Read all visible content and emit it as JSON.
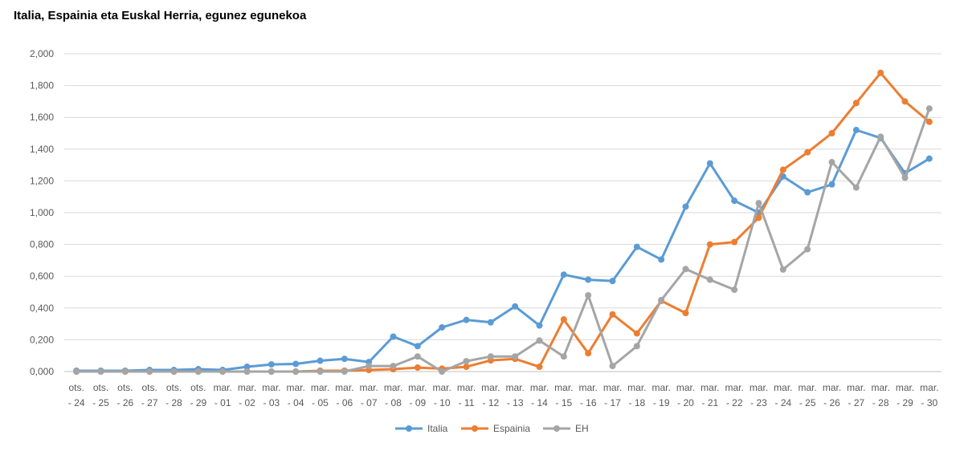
{
  "chart_data": {
    "type": "line",
    "title": "Italia, Espainia eta Euskal Herria, egunez egunekoa",
    "xlabel": "",
    "ylabel": "",
    "ylim": [
      0,
      2
    ],
    "yticks": [
      "0,000",
      "0,200",
      "0,400",
      "0,600",
      "0,800",
      "1,000",
      "1,200",
      "1,400",
      "1,600",
      "1,800",
      "2,000"
    ],
    "grid": true,
    "legend_position": "bottom",
    "categories": [
      [
        "ots.",
        "- 24"
      ],
      [
        "ots.",
        "- 25"
      ],
      [
        "ots.",
        "- 26"
      ],
      [
        "ots.",
        "- 27"
      ],
      [
        "ots.",
        "- 28"
      ],
      [
        "ots.",
        "- 29"
      ],
      [
        "mar.",
        "- 01"
      ],
      [
        "mar.",
        "- 02"
      ],
      [
        "mar.",
        "- 03"
      ],
      [
        "mar.",
        "- 04"
      ],
      [
        "mar.",
        "- 05"
      ],
      [
        "mar.",
        "- 06"
      ],
      [
        "mar.",
        "- 07"
      ],
      [
        "mar.",
        "- 08"
      ],
      [
        "mar.",
        "- 09"
      ],
      [
        "mar.",
        "- 10"
      ],
      [
        "mar.",
        "- 11"
      ],
      [
        "mar.",
        "- 12"
      ],
      [
        "mar.",
        "- 13"
      ],
      [
        "mar.",
        "- 14"
      ],
      [
        "mar.",
        "- 15"
      ],
      [
        "mar.",
        "- 16"
      ],
      [
        "mar.",
        "- 17"
      ],
      [
        "mar.",
        "- 18"
      ],
      [
        "mar.",
        "- 19"
      ],
      [
        "mar.",
        "- 20"
      ],
      [
        "mar.",
        "- 21"
      ],
      [
        "mar.",
        "- 22"
      ],
      [
        "mar.",
        "- 23"
      ],
      [
        "mar.",
        "- 24"
      ],
      [
        "mar.",
        "- 25"
      ],
      [
        "mar.",
        "- 26"
      ],
      [
        "mar.",
        "- 27"
      ],
      [
        "mar.",
        "- 28"
      ],
      [
        "mar.",
        "- 29"
      ],
      [
        "mar.",
        "- 30"
      ]
    ],
    "series": [
      {
        "name": "Italia",
        "color": "#5b9bd5",
        "values": [
          0.005,
          0.005,
          0.005,
          0.01,
          0.01,
          0.015,
          0.01,
          0.03,
          0.045,
          0.048,
          0.068,
          0.08,
          0.06,
          0.22,
          0.16,
          0.278,
          0.325,
          0.31,
          0.41,
          0.29,
          0.61,
          0.578,
          0.57,
          0.785,
          0.705,
          1.038,
          1.31,
          1.075,
          1.0,
          1.228,
          1.128,
          1.178,
          1.52,
          1.47,
          1.248,
          1.34
        ]
      },
      {
        "name": "Espainia",
        "color": "#ed7d31",
        "values": [
          0.0,
          0.0,
          0.0,
          0.0,
          0.0,
          0.0,
          0.0,
          0.0,
          0.0,
          0.0,
          0.005,
          0.005,
          0.01,
          0.015,
          0.025,
          0.018,
          0.03,
          0.07,
          0.08,
          0.03,
          0.328,
          0.115,
          0.36,
          0.24,
          0.445,
          0.368,
          0.8,
          0.815,
          0.968,
          1.27,
          1.38,
          1.5,
          1.69,
          1.88,
          1.7,
          1.572
        ]
      },
      {
        "name": "EH",
        "color": "#a5a5a5",
        "values": [
          0.0,
          0.0,
          0.0,
          0.0,
          0.0,
          0.0,
          0.0,
          0.0,
          0.0,
          0.0,
          0.0,
          0.0,
          0.035,
          0.035,
          0.095,
          0.0,
          0.065,
          0.095,
          0.095,
          0.195,
          0.095,
          0.48,
          0.035,
          0.16,
          0.45,
          0.645,
          0.578,
          0.515,
          1.06,
          0.642,
          0.77,
          1.318,
          1.158,
          1.478,
          1.22,
          1.655
        ]
      }
    ]
  }
}
